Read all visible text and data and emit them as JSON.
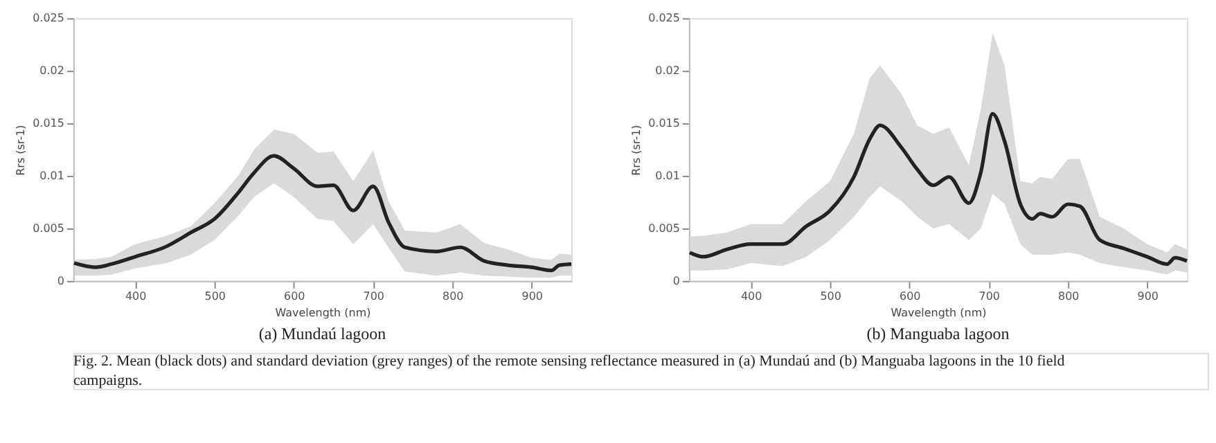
{
  "chart_data": [
    {
      "type": "line",
      "title": "(a) Mundaú lagoon",
      "xlabel": "Wavelength (nm)",
      "ylabel": "Rrs (sr-1)",
      "xlim": [
        322,
        950
      ],
      "xticks": [
        400,
        500,
        600,
        700,
        800,
        900
      ],
      "ylim": [
        0,
        0.025
      ],
      "yticks": [
        0,
        0.005,
        0.01,
        0.015,
        0.02,
        0.025
      ],
      "grid": false,
      "line_style": "solid",
      "x": [
        323,
        350,
        370,
        400,
        440,
        470,
        500,
        530,
        550,
        575,
        600,
        630,
        650,
        675,
        700,
        720,
        740,
        780,
        810,
        840,
        870,
        900,
        925,
        935,
        950
      ],
      "series": [
        {
          "color": "#222222",
          "values": [
            0.0017,
            0.0013,
            0.0016,
            0.0023,
            0.0033,
            0.0046,
            0.0059,
            0.0084,
            0.0103,
            0.0119,
            0.0107,
            0.009,
            0.0091,
            0.0067,
            0.009,
            0.0055,
            0.0032,
            0.0028,
            0.0032,
            0.0019,
            0.0015,
            0.0013,
            0.001,
            0.0015,
            0.0016
          ],
          "upper": [
            0.002,
            0.0021,
            0.0023,
            0.0035,
            0.0043,
            0.0052,
            0.0074,
            0.01,
            0.0125,
            0.0144,
            0.014,
            0.0122,
            0.0123,
            0.0095,
            0.0124,
            0.0075,
            0.0048,
            0.0046,
            0.0054,
            0.0036,
            0.003,
            0.0022,
            0.002,
            0.0026,
            0.0025
          ],
          "lower": [
            0.0005,
            0.0005,
            0.0006,
            0.0012,
            0.0017,
            0.0025,
            0.0039,
            0.0062,
            0.008,
            0.0093,
            0.008,
            0.0059,
            0.0057,
            0.0035,
            0.0054,
            0.0031,
            0.0009,
            0.0005,
            0.0008,
            0.0005,
            0.0004,
            0.0003,
            0.0003,
            0.0005,
            0.0005
          ]
        }
      ],
      "annotations": [
        "Fig. 2. Mean (black dots) and standard deviation (grey ranges) of the remote sensing reflectance measured in (a) Mundaú and (b) Manguaba lagoons in the 10 field campaigns."
      ]
    },
    {
      "type": "line",
      "title": "(b) Manguaba lagoon",
      "xlabel": "Wavelength (nm)",
      "ylabel": "Rrs (sr-1)",
      "xlim": [
        322,
        950
      ],
      "xticks": [
        400,
        500,
        600,
        700,
        800,
        900
      ],
      "ylim": [
        0,
        0.025
      ],
      "yticks": [
        0,
        0.005,
        0.01,
        0.015,
        0.02,
        0.025
      ],
      "grid": false,
      "line_style": "solid",
      "x": [
        323,
        340,
        370,
        400,
        440,
        470,
        500,
        530,
        550,
        563,
        590,
        610,
        630,
        650,
        675,
        690,
        705,
        720,
        740,
        755,
        765,
        780,
        800,
        815,
        840,
        870,
        900,
        925,
        935,
        950
      ],
      "series": [
        {
          "color": "#222222",
          "values": [
            0.0027,
            0.0023,
            0.003,
            0.0035,
            0.0035,
            0.0052,
            0.0067,
            0.0099,
            0.0135,
            0.0148,
            0.0127,
            0.0106,
            0.0091,
            0.0099,
            0.0074,
            0.0103,
            0.0159,
            0.0133,
            0.0073,
            0.0059,
            0.0064,
            0.0061,
            0.0073,
            0.0071,
            0.0039,
            0.0031,
            0.0023,
            0.0016,
            0.0022,
            0.0019
          ],
          "upper": [
            0.0042,
            0.0043,
            0.0046,
            0.0054,
            0.0054,
            0.0076,
            0.0095,
            0.014,
            0.0193,
            0.0205,
            0.0178,
            0.0148,
            0.014,
            0.0146,
            0.011,
            0.0163,
            0.0236,
            0.0205,
            0.0095,
            0.0093,
            0.0099,
            0.0097,
            0.0116,
            0.0116,
            0.0061,
            0.005,
            0.0035,
            0.0027,
            0.0035,
            0.003
          ],
          "lower": [
            0.001,
            0.001,
            0.0011,
            0.0017,
            0.0014,
            0.0023,
            0.0039,
            0.0061,
            0.008,
            0.009,
            0.0076,
            0.0061,
            0.005,
            0.0054,
            0.0039,
            0.005,
            0.0083,
            0.0073,
            0.0035,
            0.0025,
            0.0025,
            0.0025,
            0.0027,
            0.0025,
            0.0017,
            0.0013,
            0.001,
            0.0006,
            0.001,
            0.0008
          ]
        }
      ]
    }
  ]
}
